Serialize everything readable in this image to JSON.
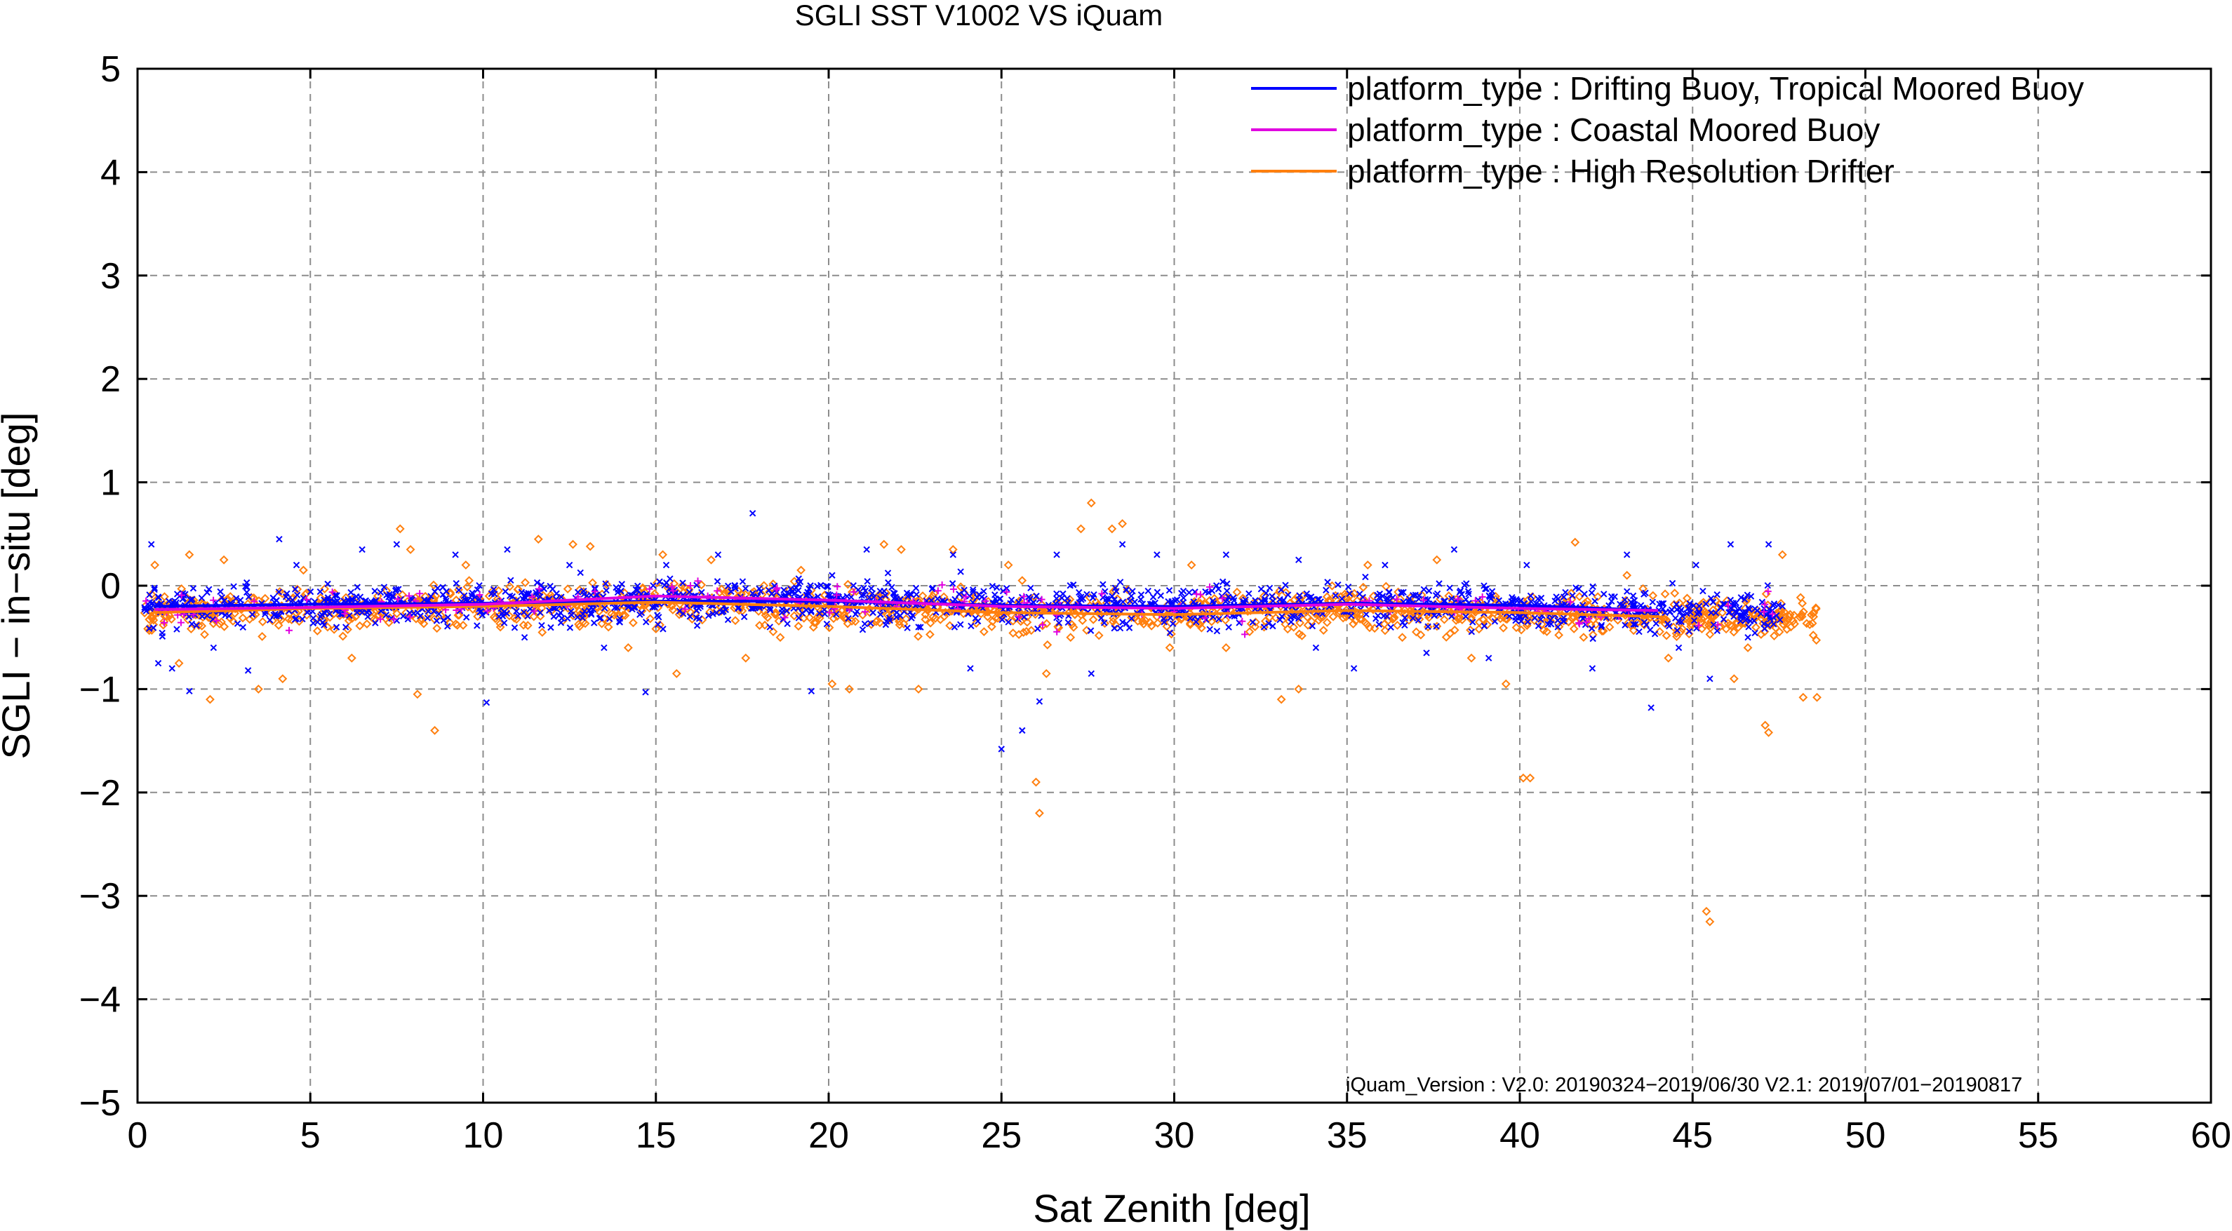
{
  "chart_data": {
    "type": "scatter",
    "title": "SGLI SST V1002 VS iQuam",
    "xlabel": "Sat Zenith [deg]",
    "ylabel": "SGLI − in−situ [deg]",
    "xlim": [
      0,
      60
    ],
    "ylim": [
      -5,
      5
    ],
    "x_ticks": [
      "0",
      "5",
      "10",
      "15",
      "20",
      "25",
      "30",
      "35",
      "40",
      "45",
      "50",
      "55",
      "60"
    ],
    "y_ticks": [
      "5",
      "4",
      "3",
      "2",
      "1",
      "0",
      "−1",
      "−2",
      "−3",
      "−4",
      "−5"
    ],
    "grid": true,
    "legend_position": "top-right",
    "annotation": "iQuam_Version :  V2.0: 20190324−2019/06/30 V2.1: 2019/07/01−20190817",
    "series": [
      {
        "name": "platform_type : Drifting Buoy, Tropical Moored Buoy",
        "color": "#0000ff",
        "marker": "x",
        "trend_x": [
          0.5,
          5,
          10,
          15,
          20,
          25,
          30,
          35,
          40,
          44
        ],
        "trend_y": [
          -0.2,
          -0.18,
          -0.17,
          -0.15,
          -0.15,
          -0.19,
          -0.2,
          -0.17,
          -0.19,
          -0.24
        ],
        "points": [
          [
            0.4,
            0.4
          ],
          [
            0.6,
            -0.75
          ],
          [
            1.0,
            -0.8
          ],
          [
            1.5,
            -1.02
          ],
          [
            2.2,
            -0.6
          ],
          [
            3.2,
            -0.82
          ],
          [
            4.1,
            0.45
          ],
          [
            4.6,
            0.2
          ],
          [
            5.3,
            -0.3
          ],
          [
            6.5,
            0.35
          ],
          [
            7.5,
            0.4
          ],
          [
            8.5,
            -0.2
          ],
          [
            9.2,
            0.3
          ],
          [
            10.1,
            -1.13
          ],
          [
            10.7,
            0.35
          ],
          [
            11.2,
            -0.5
          ],
          [
            12.5,
            0.2
          ],
          [
            13.5,
            -0.6
          ],
          [
            14.7,
            -1.03
          ],
          [
            15.3,
            0.2
          ],
          [
            16.1,
            -0.1
          ],
          [
            16.8,
            0.3
          ],
          [
            17.8,
            0.7
          ],
          [
            18.3,
            -0.4
          ],
          [
            19.5,
            -1.02
          ],
          [
            20.1,
            0.1
          ],
          [
            21.1,
            0.35
          ],
          [
            22.6,
            -0.4
          ],
          [
            23.6,
            0.3
          ],
          [
            24.1,
            -0.8
          ],
          [
            25.0,
            -1.58
          ],
          [
            25.6,
            -1.4
          ],
          [
            26.1,
            -1.12
          ],
          [
            26.6,
            0.3
          ],
          [
            27.2,
            -0.2
          ],
          [
            27.6,
            -0.85
          ],
          [
            28.5,
            0.4
          ],
          [
            29.5,
            0.3
          ],
          [
            30.6,
            -0.3
          ],
          [
            31.5,
            0.3
          ],
          [
            32.6,
            -0.4
          ],
          [
            33.6,
            0.25
          ],
          [
            34.1,
            -0.6
          ],
          [
            35.2,
            -0.8
          ],
          [
            36.1,
            0.2
          ],
          [
            37.3,
            -0.65
          ],
          [
            38.1,
            0.35
          ],
          [
            39.1,
            -0.7
          ],
          [
            40.2,
            0.2
          ],
          [
            41.1,
            -0.4
          ],
          [
            42.1,
            -0.8
          ],
          [
            43.1,
            0.3
          ],
          [
            43.8,
            -1.18
          ],
          [
            44.6,
            -0.6
          ],
          [
            45.1,
            0.2
          ],
          [
            45.5,
            -0.9
          ],
          [
            46.1,
            0.4
          ],
          [
            46.6,
            -0.5
          ],
          [
            47.2,
            0.4
          ],
          [
            47.6,
            -0.2
          ]
        ]
      },
      {
        "name": "platform_type : Coastal Moored Buoy",
        "color": "#e000e0",
        "marker": "+",
        "trend_x": [
          0.5,
          5,
          10,
          15,
          20,
          25,
          30,
          35,
          40,
          44
        ],
        "trend_y": [
          -0.23,
          -0.21,
          -0.18,
          -0.1,
          -0.14,
          -0.2,
          -0.22,
          -0.18,
          -0.22,
          -0.24
        ],
        "points": [
          [
            15.5,
            -0.05
          ],
          [
            16.0,
            0.0
          ],
          [
            16.5,
            -0.1
          ],
          [
            10.5,
            -0.15
          ],
          [
            20.5,
            -0.15
          ],
          [
            30.0,
            -0.25
          ],
          [
            35.5,
            -0.15
          ],
          [
            5.5,
            -0.2
          ],
          [
            25.5,
            -0.3
          ],
          [
            40.5,
            -0.25
          ]
        ]
      },
      {
        "name": "platform_type : High Resolution Drifter",
        "color": "#ff7f0e",
        "marker": "diamond",
        "trend_x": [
          0.5,
          5,
          10,
          15,
          20,
          25,
          30,
          35,
          40,
          44
        ],
        "trend_y": [
          -0.26,
          -0.22,
          -0.2,
          -0.16,
          -0.2,
          -0.26,
          -0.28,
          -0.24,
          -0.26,
          -0.3
        ],
        "points": [
          [
            0.5,
            0.2
          ],
          [
            1.2,
            -0.75
          ],
          [
            1.5,
            0.3
          ],
          [
            2.1,
            -1.1
          ],
          [
            2.5,
            0.25
          ],
          [
            3.5,
            -1.0
          ],
          [
            4.2,
            -0.9
          ],
          [
            4.8,
            0.15
          ],
          [
            5.5,
            -0.4
          ],
          [
            6.2,
            -0.7
          ],
          [
            7.6,
            0.55
          ],
          [
            7.9,
            0.35
          ],
          [
            8.1,
            -1.05
          ],
          [
            8.6,
            -1.4
          ],
          [
            9.5,
            0.2
          ],
          [
            10.5,
            -0.4
          ],
          [
            11.6,
            0.45
          ],
          [
            12.6,
            0.4
          ],
          [
            13.1,
            0.38
          ],
          [
            14.2,
            -0.6
          ],
          [
            15.2,
            0.3
          ],
          [
            15.6,
            -0.85
          ],
          [
            16.6,
            0.25
          ],
          [
            17.6,
            -0.7
          ],
          [
            18.6,
            -0.5
          ],
          [
            19.2,
            0.15
          ],
          [
            20.1,
            -0.95
          ],
          [
            20.6,
            -1.0
          ],
          [
            21.6,
            0.4
          ],
          [
            22.1,
            0.35
          ],
          [
            22.6,
            -1.0
          ],
          [
            23.6,
            0.35
          ],
          [
            24.6,
            -0.3
          ],
          [
            25.2,
            0.2
          ],
          [
            25.6,
            0.05
          ],
          [
            26.0,
            -1.9
          ],
          [
            26.1,
            -2.2
          ],
          [
            26.3,
            -0.85
          ],
          [
            27.0,
            -0.5
          ],
          [
            27.6,
            0.8
          ],
          [
            27.3,
            0.55
          ],
          [
            28.2,
            0.55
          ],
          [
            28.5,
            0.6
          ],
          [
            29.5,
            -0.3
          ],
          [
            30.5,
            0.2
          ],
          [
            31.5,
            -0.6
          ],
          [
            32.6,
            -0.4
          ],
          [
            33.1,
            -1.1
          ],
          [
            33.6,
            -1.0
          ],
          [
            34.6,
            -0.3
          ],
          [
            35.6,
            0.2
          ],
          [
            36.6,
            -0.5
          ],
          [
            37.6,
            0.25
          ],
          [
            38.6,
            -0.7
          ],
          [
            39.6,
            -0.95
          ],
          [
            40.1,
            -1.86
          ],
          [
            40.3,
            -1.86
          ],
          [
            41.6,
            0.42
          ],
          [
            42.6,
            -0.4
          ],
          [
            43.1,
            0.1
          ],
          [
            44.3,
            -0.7
          ],
          [
            45.2,
            -0.3
          ],
          [
            45.4,
            -3.15
          ],
          [
            45.5,
            -3.25
          ],
          [
            46.2,
            -0.9
          ],
          [
            46.6,
            -0.6
          ],
          [
            47.1,
            -1.35
          ],
          [
            47.2,
            -1.42
          ],
          [
            47.6,
            0.3
          ],
          [
            48.2,
            -1.08
          ],
          [
            48.5,
            -0.3
          ],
          [
            48.6,
            -1.08
          ]
        ]
      }
    ]
  }
}
